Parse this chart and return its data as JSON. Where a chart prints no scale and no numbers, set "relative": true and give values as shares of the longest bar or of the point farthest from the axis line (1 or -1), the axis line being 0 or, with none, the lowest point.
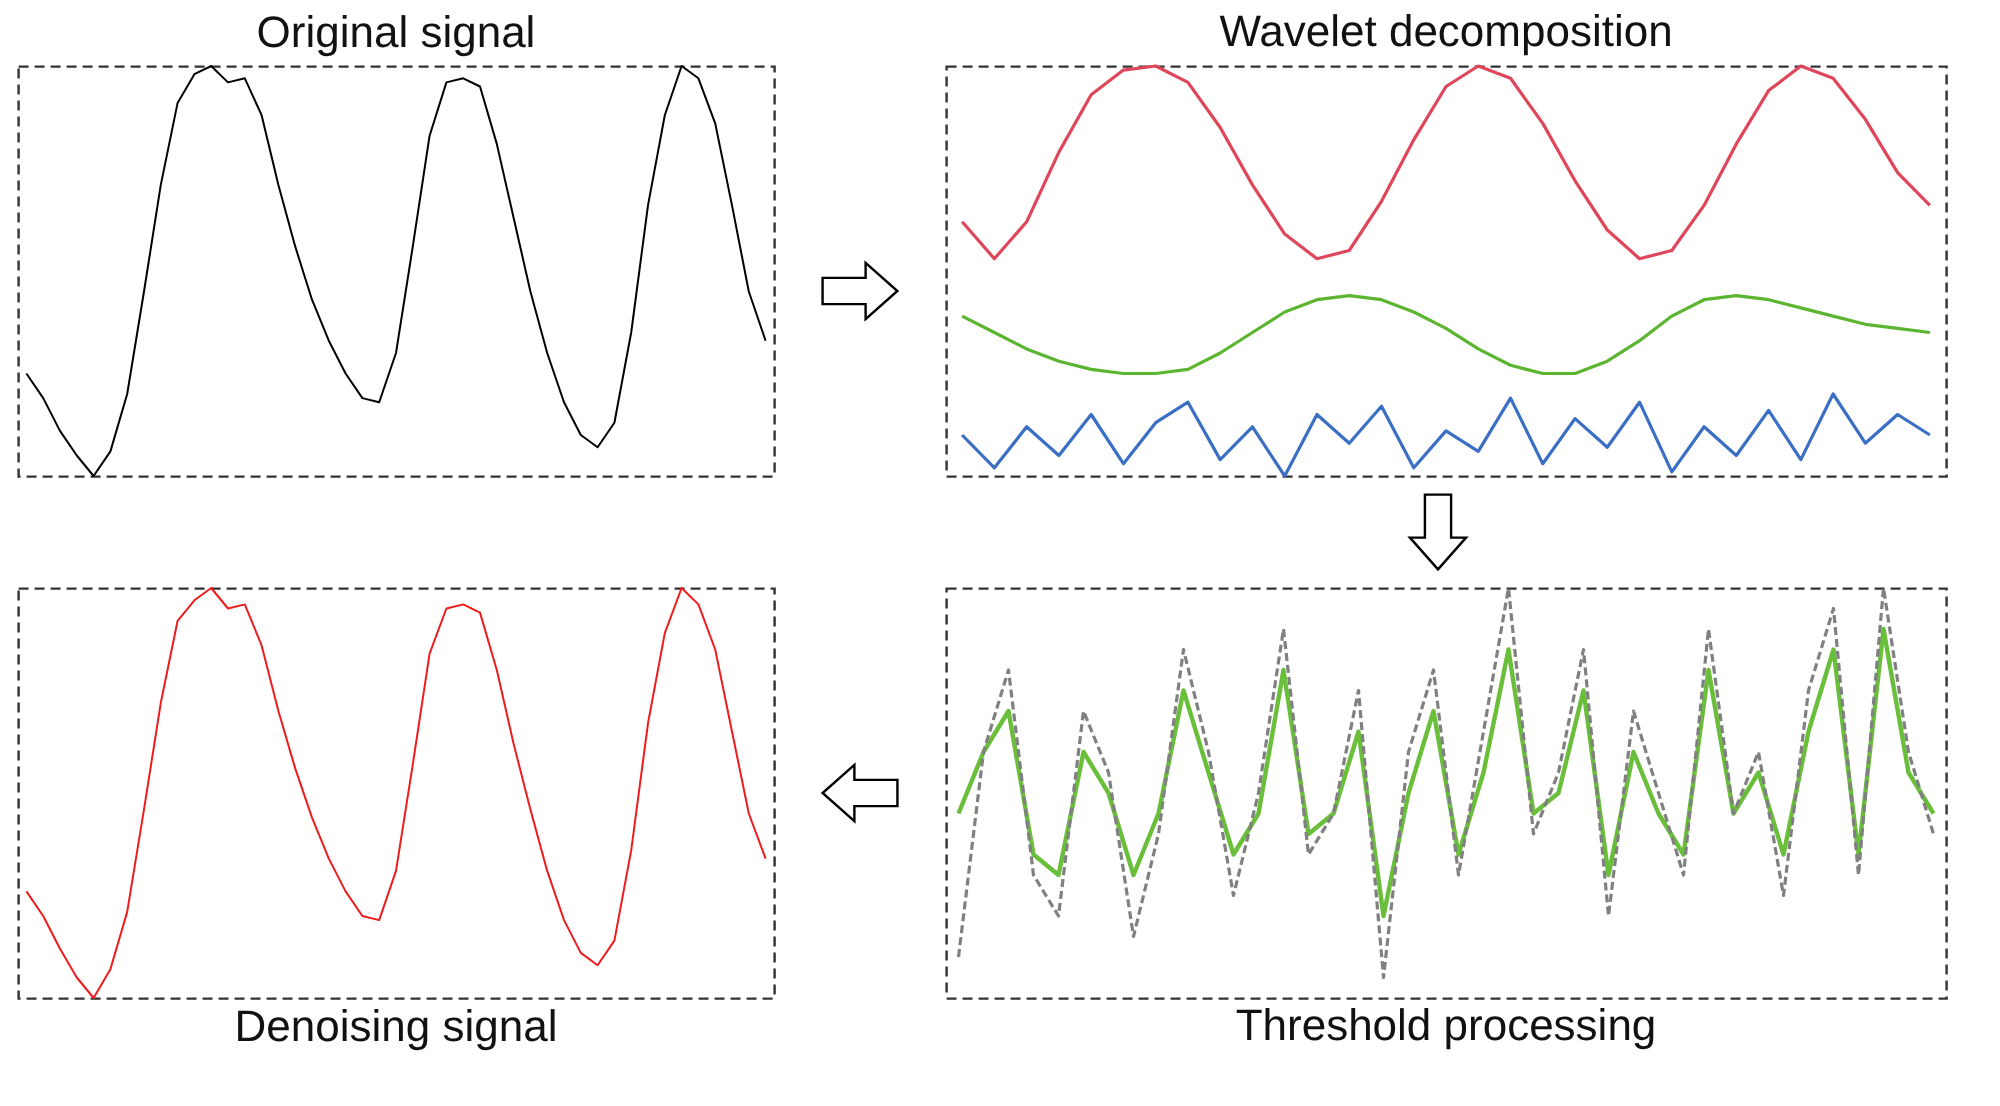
{
  "chart_data": [
    {
      "type": "line",
      "title": "Original signal",
      "relative": true,
      "tick_labels": false,
      "categories": [
        null,
        null,
        null,
        null,
        null,
        null,
        null,
        null,
        null,
        null,
        null,
        null,
        null,
        null,
        null,
        null,
        null,
        null,
        null,
        null,
        null,
        null,
        null,
        null,
        null,
        null,
        null,
        null,
        null,
        null,
        null,
        null,
        null,
        null,
        null,
        null,
        null,
        null,
        null,
        null,
        null,
        null,
        null,
        null,
        null
      ],
      "series": [
        {
          "color": "#000000",
          "values": [
            0.25,
            0.19,
            0.11,
            0.05,
            0,
            0.06,
            0.2,
            0.45,
            0.71,
            0.91,
            0.98,
            1,
            0.96,
            0.97,
            0.88,
            0.71,
            0.56,
            0.43,
            0.33,
            0.25,
            0.19,
            0.18,
            0.3,
            0.56,
            0.83,
            0.96,
            0.97,
            0.95,
            0.81,
            0.63,
            0.45,
            0.3,
            0.18,
            0.1,
            0.07,
            0.13,
            0.35,
            0.66,
            0.88,
            1,
            0.97,
            0.86,
            0.66,
            0.45,
            0.33
          ]
        }
      ]
    },
    {
      "type": "line",
      "title": "Wavelet decomposition",
      "relative": true,
      "tick_labels": false,
      "categories": [
        null,
        null,
        null,
        null,
        null,
        null,
        null,
        null,
        null,
        null,
        null,
        null,
        null,
        null,
        null,
        null,
        null,
        null,
        null,
        null,
        null,
        null,
        null,
        null,
        null,
        null,
        null,
        null,
        null,
        null,
        null
      ],
      "series": [
        {
          "color": "#e0465a",
          "values": [
            0.62,
            0.53,
            0.62,
            0.79,
            0.93,
            0.99,
            1.0,
            0.96,
            0.85,
            0.71,
            0.59,
            0.53,
            0.55,
            0.67,
            0.82,
            0.95,
            1.0,
            0.97,
            0.86,
            0.72,
            0.6,
            0.53,
            0.55,
            0.66,
            0.81,
            0.94,
            1.0,
            0.97,
            0.87,
            0.74,
            0.66
          ]
        },
        {
          "color": "#5cb531",
          "values": [
            0.39,
            0.35,
            0.31,
            0.28,
            0.26,
            0.25,
            0.25,
            0.26,
            0.3,
            0.35,
            0.4,
            0.43,
            0.44,
            0.43,
            0.4,
            0.36,
            0.31,
            0.27,
            0.25,
            0.25,
            0.28,
            0.33,
            0.39,
            0.43,
            0.44,
            0.43,
            0.41,
            0.39,
            0.37,
            0.36,
            0.35
          ]
        },
        {
          "color": "#3a6fc4",
          "values": [
            0.1,
            0.02,
            0.12,
            0.05,
            0.15,
            0.03,
            0.13,
            0.18,
            0.04,
            0.12,
            0.0,
            0.15,
            0.08,
            0.17,
            0.02,
            0.11,
            0.06,
            0.19,
            0.03,
            0.14,
            0.07,
            0.18,
            0.01,
            0.12,
            0.05,
            0.16,
            0.04,
            0.2,
            0.08,
            0.15,
            0.1
          ]
        }
      ]
    },
    {
      "type": "line",
      "title": "Denoising signal",
      "relative": true,
      "tick_labels": false,
      "categories": [
        null,
        null,
        null,
        null,
        null,
        null,
        null,
        null,
        null,
        null,
        null,
        null,
        null,
        null,
        null,
        null,
        null,
        null,
        null,
        null,
        null,
        null,
        null,
        null,
        null,
        null,
        null,
        null,
        null,
        null,
        null,
        null,
        null,
        null,
        null,
        null,
        null,
        null,
        null,
        null,
        null,
        null,
        null,
        null,
        null
      ],
      "series": [
        {
          "color": "#ee1c1c",
          "values": [
            0.26,
            0.2,
            0.12,
            0.05,
            0,
            0.07,
            0.21,
            0.46,
            0.72,
            0.92,
            0.97,
            1,
            0.95,
            0.96,
            0.86,
            0.7,
            0.56,
            0.44,
            0.34,
            0.26,
            0.2,
            0.19,
            0.31,
            0.57,
            0.84,
            0.95,
            0.96,
            0.94,
            0.8,
            0.62,
            0.46,
            0.31,
            0.19,
            0.11,
            0.08,
            0.14,
            0.36,
            0.67,
            0.89,
            1,
            0.96,
            0.85,
            0.65,
            0.45,
            0.34
          ]
        }
      ]
    },
    {
      "type": "line",
      "title": "Threshold processing",
      "relative": true,
      "tick_labels": false,
      "categories": [
        null,
        null,
        null,
        null,
        null,
        null,
        null,
        null,
        null,
        null,
        null,
        null,
        null,
        null,
        null,
        null,
        null,
        null,
        null,
        null,
        null,
        null,
        null,
        null,
        null,
        null,
        null,
        null,
        null,
        null,
        null,
        null,
        null,
        null,
        null,
        null,
        null,
        null,
        null,
        null
      ],
      "series": [
        {
          "color": "#6abf3a",
          "line_style": "solid",
          "values": [
            0.45,
            0.6,
            0.7,
            0.35,
            0.3,
            0.6,
            0.5,
            0.3,
            0.45,
            0.75,
            0.55,
            0.35,
            0.45,
            0.8,
            0.4,
            0.45,
            0.65,
            0.2,
            0.5,
            0.7,
            0.35,
            0.55,
            0.85,
            0.45,
            0.5,
            0.75,
            0.3,
            0.6,
            0.45,
            0.35,
            0.8,
            0.45,
            0.55,
            0.35,
            0.65,
            0.85,
            0.35,
            0.9,
            0.55,
            0.45
          ]
        },
        {
          "color": "#808080",
          "line_style": "dashed",
          "values": [
            0.1,
            0.6,
            0.8,
            0.3,
            0.2,
            0.7,
            0.55,
            0.15,
            0.4,
            0.85,
            0.6,
            0.25,
            0.5,
            0.9,
            0.35,
            0.45,
            0.75,
            0.05,
            0.6,
            0.8,
            0.3,
            0.65,
            1.0,
            0.4,
            0.55,
            0.85,
            0.2,
            0.7,
            0.5,
            0.3,
            0.9,
            0.45,
            0.6,
            0.25,
            0.75,
            0.95,
            0.3,
            1.0,
            0.6,
            0.4
          ]
        }
      ]
    }
  ]
}
